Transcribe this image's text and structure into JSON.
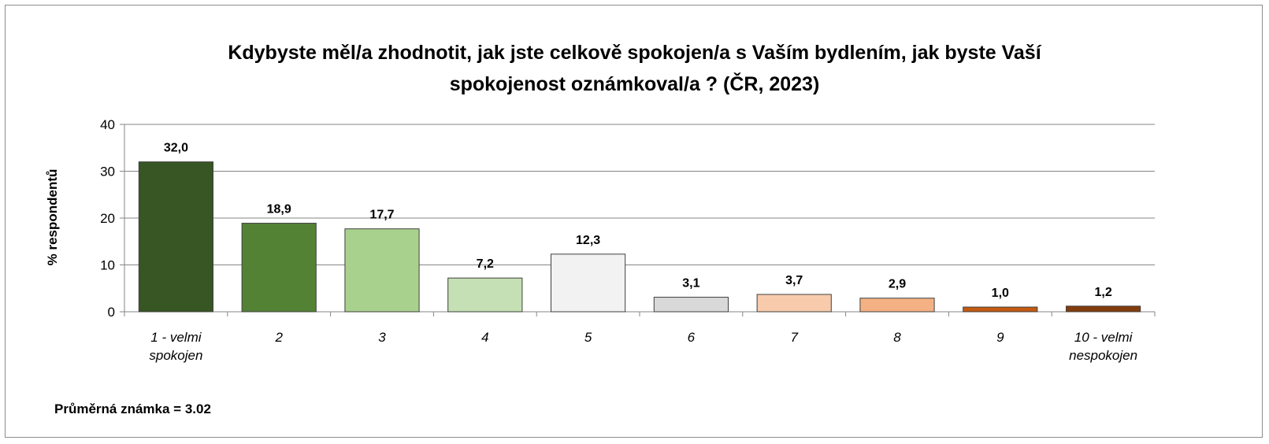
{
  "chart_data": {
    "type": "bar",
    "title_lines": [
      "Kdybyste měl/a zhodnotit,  jak jste celkově spokojen/a  s Vaším bydlením, jak byste Vaší",
      "spokojenost  oznámkoval/a  ? (ČR, 2023)"
    ],
    "ylabel": "% respondentů",
    "xlabel": "",
    "ylim": [
      0,
      40
    ],
    "yticks": [
      0,
      10,
      20,
      30,
      40
    ],
    "grid": true,
    "categories": [
      [
        "1 - velmi",
        "spokojen"
      ],
      [
        "2"
      ],
      [
        "3"
      ],
      [
        "4"
      ],
      [
        "5"
      ],
      [
        "6"
      ],
      [
        "7"
      ],
      [
        "8"
      ],
      [
        "9"
      ],
      [
        "10 - velmi",
        "nespokojen"
      ]
    ],
    "values": [
      32.0,
      18.9,
      17.7,
      7.2,
      12.3,
      3.1,
      3.7,
      2.9,
      1.0,
      1.2
    ],
    "value_labels": [
      "32,0",
      "18,9",
      "17,7",
      "7,2",
      "12,3",
      "3,1",
      "3,7",
      "2,9",
      "1,0",
      "1,2"
    ],
    "colors": [
      "#375623",
      "#548235",
      "#a9d18e",
      "#c5e0b4",
      "#f2f2f2",
      "#d9d9d9",
      "#f8cbad",
      "#f4b183",
      "#c55a11",
      "#843c0c"
    ],
    "annotation": "Průměrná známka = 3.02"
  }
}
